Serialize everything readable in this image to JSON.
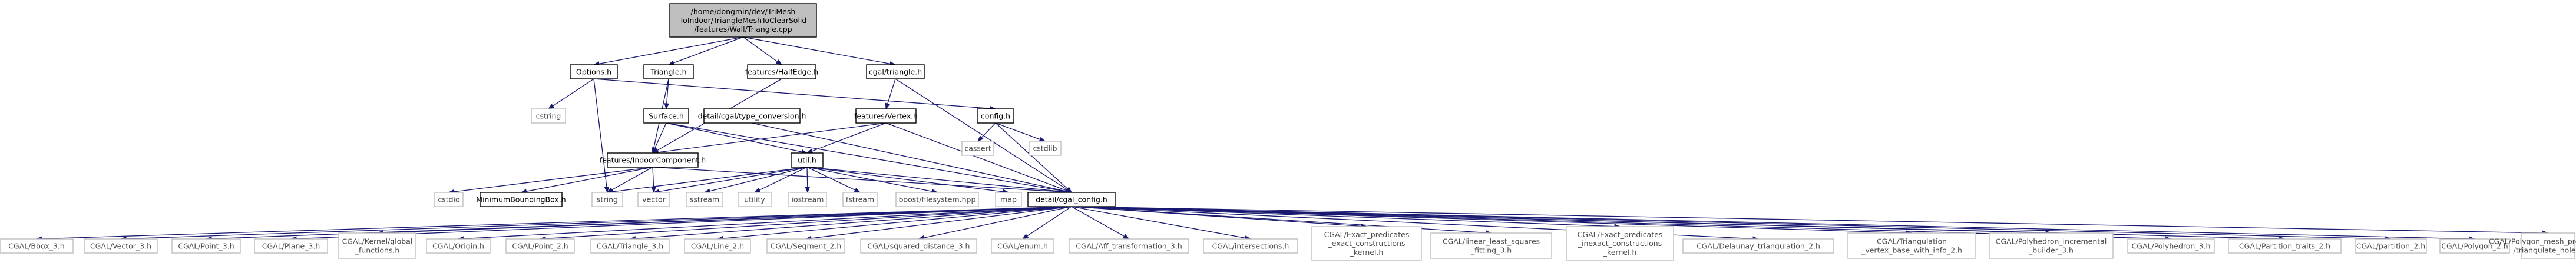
{
  "colors": {
    "edge": "#191970",
    "root_fill": "#bfbfbf",
    "border": "#000000",
    "external_border": "#bfbfbf"
  },
  "nodes": [
    {
      "id": "root",
      "kind": "root",
      "label": [
        "/home/dongmin/dev/TriMesh",
        "ToIndoor/TriangleMeshToClearSolid",
        "/features/Wall/Triangle.cpp"
      ]
    },
    {
      "id": "options_h",
      "kind": "boxed",
      "label": [
        "Options.h"
      ]
    },
    {
      "id": "triangle_h",
      "kind": "boxed",
      "label": [
        "Triangle.h"
      ]
    },
    {
      "id": "halfedge_h",
      "kind": "boxed",
      "label": [
        "features/HalfEdge.h"
      ]
    },
    {
      "id": "cgaltriangle_h",
      "kind": "boxed",
      "label": [
        "cgal/triangle.h"
      ]
    },
    {
      "id": "cstring",
      "kind": "external",
      "label": [
        "cstring"
      ]
    },
    {
      "id": "surface_h",
      "kind": "boxed",
      "label": [
        "Surface.h"
      ]
    },
    {
      "id": "type_conversion_h",
      "kind": "boxed",
      "label": [
        "detail/cgal/type_conversion.h"
      ]
    },
    {
      "id": "vertex_h",
      "kind": "boxed",
      "label": [
        "features/Vertex.h"
      ]
    },
    {
      "id": "config_h",
      "kind": "boxed",
      "label": [
        "config.h"
      ]
    },
    {
      "id": "cassert",
      "kind": "external",
      "label": [
        "cassert"
      ]
    },
    {
      "id": "cstdlib",
      "kind": "external",
      "label": [
        "cstdlib"
      ]
    },
    {
      "id": "indoor_component_h",
      "kind": "boxed",
      "label": [
        "features/IndoorComponent.h"
      ]
    },
    {
      "id": "util_h",
      "kind": "boxed",
      "label": [
        "util.h"
      ]
    },
    {
      "id": "cstdio",
      "kind": "external",
      "label": [
        "cstdio"
      ]
    },
    {
      "id": "mbb_h",
      "kind": "boxed",
      "label": [
        "MinimumBoundingBox.h"
      ]
    },
    {
      "id": "string",
      "kind": "external",
      "label": [
        "string"
      ]
    },
    {
      "id": "vector",
      "kind": "external",
      "label": [
        "vector"
      ]
    },
    {
      "id": "sstream",
      "kind": "external",
      "label": [
        "sstream"
      ]
    },
    {
      "id": "utility",
      "kind": "external",
      "label": [
        "utility"
      ]
    },
    {
      "id": "iostream",
      "kind": "external",
      "label": [
        "iostream"
      ]
    },
    {
      "id": "fstream",
      "kind": "external",
      "label": [
        "fstream"
      ]
    },
    {
      "id": "boost_fs",
      "kind": "external",
      "label": [
        "boost/filesystem.hpp"
      ]
    },
    {
      "id": "map",
      "kind": "external",
      "label": [
        "map"
      ]
    },
    {
      "id": "cgal_config_h",
      "kind": "boxed",
      "label": [
        "detail/cgal_config.h"
      ]
    },
    {
      "id": "bbox3",
      "kind": "external",
      "label": [
        "CGAL/Bbox_3.h"
      ]
    },
    {
      "id": "vector3",
      "kind": "external",
      "label": [
        "CGAL/Vector_3.h"
      ]
    },
    {
      "id": "point3",
      "kind": "external",
      "label": [
        "CGAL/Point_3.h"
      ]
    },
    {
      "id": "plane3",
      "kind": "external",
      "label": [
        "CGAL/Plane_3.h"
      ]
    },
    {
      "id": "kernel_global",
      "kind": "external",
      "label": [
        "CGAL/Kernel/global",
        "_functions.h"
      ]
    },
    {
      "id": "origin",
      "kind": "external",
      "label": [
        "CGAL/Origin.h"
      ]
    },
    {
      "id": "point2",
      "kind": "external",
      "label": [
        "CGAL/Point_2.h"
      ]
    },
    {
      "id": "triangle3",
      "kind": "external",
      "label": [
        "CGAL/Triangle_3.h"
      ]
    },
    {
      "id": "line2",
      "kind": "external",
      "label": [
        "CGAL/Line_2.h"
      ]
    },
    {
      "id": "segment2",
      "kind": "external",
      "label": [
        "CGAL/Segment_2.h"
      ]
    },
    {
      "id": "sqdist3",
      "kind": "external",
      "label": [
        "CGAL/squared_distance_3.h"
      ]
    },
    {
      "id": "enum",
      "kind": "external",
      "label": [
        "CGAL/enum.h"
      ]
    },
    {
      "id": "aff3",
      "kind": "external",
      "label": [
        "CGAL/Aff_transformation_3.h"
      ]
    },
    {
      "id": "intersections",
      "kind": "external",
      "label": [
        "CGAL/intersections.h"
      ]
    },
    {
      "id": "epec",
      "kind": "external",
      "label": [
        "CGAL/Exact_predicates",
        "_exact_constructions",
        "_kernel.h"
      ]
    },
    {
      "id": "llsf3",
      "kind": "external",
      "label": [
        "CGAL/linear_least_squares",
        "_fitting_3.h"
      ]
    },
    {
      "id": "epic",
      "kind": "external",
      "label": [
        "CGAL/Exact_predicates",
        "_inexact_constructions",
        "_kernel.h"
      ]
    },
    {
      "id": "delaunay2",
      "kind": "external",
      "label": [
        "CGAL/Delaunay_triangulation_2.h"
      ]
    },
    {
      "id": "tvbwi2",
      "kind": "external",
      "label": [
        "CGAL/Triangulation",
        "_vertex_base_with_info_2.h"
      ]
    },
    {
      "id": "polyinc3",
      "kind": "external",
      "label": [
        "CGAL/Polyhedron_incremental",
        "_builder_3.h"
      ]
    },
    {
      "id": "poly3",
      "kind": "external",
      "label": [
        "CGAL/Polyhedron_3.h"
      ]
    },
    {
      "id": "parttraits2",
      "kind": "external",
      "label": [
        "CGAL/Partition_traits_2.h"
      ]
    },
    {
      "id": "partition2",
      "kind": "external",
      "label": [
        "CGAL/partition_2.h"
      ]
    },
    {
      "id": "polygon2",
      "kind": "external",
      "label": [
        "CGAL/Polygon_2.h"
      ]
    },
    {
      "id": "triangulate_hole",
      "kind": "external",
      "label": [
        "CGAL/Polygon_mesh_processing",
        "/triangulate_hole.h"
      ]
    }
  ],
  "edges": [
    [
      "root",
      "options_h"
    ],
    [
      "root",
      "triangle_h"
    ],
    [
      "root",
      "halfedge_h"
    ],
    [
      "root",
      "cgaltriangle_h"
    ],
    [
      "options_h",
      "cstring"
    ],
    [
      "options_h",
      "config_h"
    ],
    [
      "options_h",
      "string"
    ],
    [
      "triangle_h",
      "surface_h"
    ],
    [
      "triangle_h",
      "indoor_component_h"
    ],
    [
      "halfedge_h",
      "indoor_component_h"
    ],
    [
      "cgaltriangle_h",
      "vertex_h"
    ],
    [
      "cgaltriangle_h",
      "cgal_config_h"
    ],
    [
      "surface_h",
      "indoor_component_h"
    ],
    [
      "surface_h",
      "util_h"
    ],
    [
      "surface_h",
      "cgal_config_h"
    ],
    [
      "type_conversion_h",
      "cgal_config_h"
    ],
    [
      "vertex_h",
      "indoor_component_h"
    ],
    [
      "vertex_h",
      "cgal_config_h"
    ],
    [
      "vertex_h",
      "util_h"
    ],
    [
      "config_h",
      "cassert"
    ],
    [
      "config_h",
      "cstdlib"
    ],
    [
      "config_h",
      "cgal_config_h"
    ],
    [
      "indoor_component_h",
      "cstdio"
    ],
    [
      "indoor_component_h",
      "mbb_h"
    ],
    [
      "indoor_component_h",
      "string"
    ],
    [
      "indoor_component_h",
      "vector"
    ],
    [
      "indoor_component_h",
      "cgal_config_h"
    ],
    [
      "util_h",
      "string"
    ],
    [
      "util_h",
      "vector"
    ],
    [
      "util_h",
      "sstream"
    ],
    [
      "util_h",
      "utility"
    ],
    [
      "util_h",
      "iostream"
    ],
    [
      "util_h",
      "fstream"
    ],
    [
      "util_h",
      "boost_fs"
    ],
    [
      "util_h",
      "map"
    ],
    [
      "util_h",
      "cgal_config_h"
    ],
    [
      "cgal_config_h",
      "bbox3"
    ],
    [
      "cgal_config_h",
      "vector3"
    ],
    [
      "cgal_config_h",
      "point3"
    ],
    [
      "cgal_config_h",
      "plane3"
    ],
    [
      "cgal_config_h",
      "kernel_global"
    ],
    [
      "cgal_config_h",
      "origin"
    ],
    [
      "cgal_config_h",
      "point2"
    ],
    [
      "cgal_config_h",
      "triangle3"
    ],
    [
      "cgal_config_h",
      "line2"
    ],
    [
      "cgal_config_h",
      "segment2"
    ],
    [
      "cgal_config_h",
      "sqdist3"
    ],
    [
      "cgal_config_h",
      "enum"
    ],
    [
      "cgal_config_h",
      "aff3"
    ],
    [
      "cgal_config_h",
      "intersections"
    ],
    [
      "cgal_config_h",
      "epec"
    ],
    [
      "cgal_config_h",
      "llsf3"
    ],
    [
      "cgal_config_h",
      "epic"
    ],
    [
      "cgal_config_h",
      "delaunay2"
    ],
    [
      "cgal_config_h",
      "tvbwi2"
    ],
    [
      "cgal_config_h",
      "polyinc3"
    ],
    [
      "cgal_config_h",
      "poly3"
    ],
    [
      "cgal_config_h",
      "parttraits2"
    ],
    [
      "cgal_config_h",
      "partition2"
    ],
    [
      "cgal_config_h",
      "polygon2"
    ],
    [
      "cgal_config_h",
      "triangulate_hole"
    ]
  ]
}
